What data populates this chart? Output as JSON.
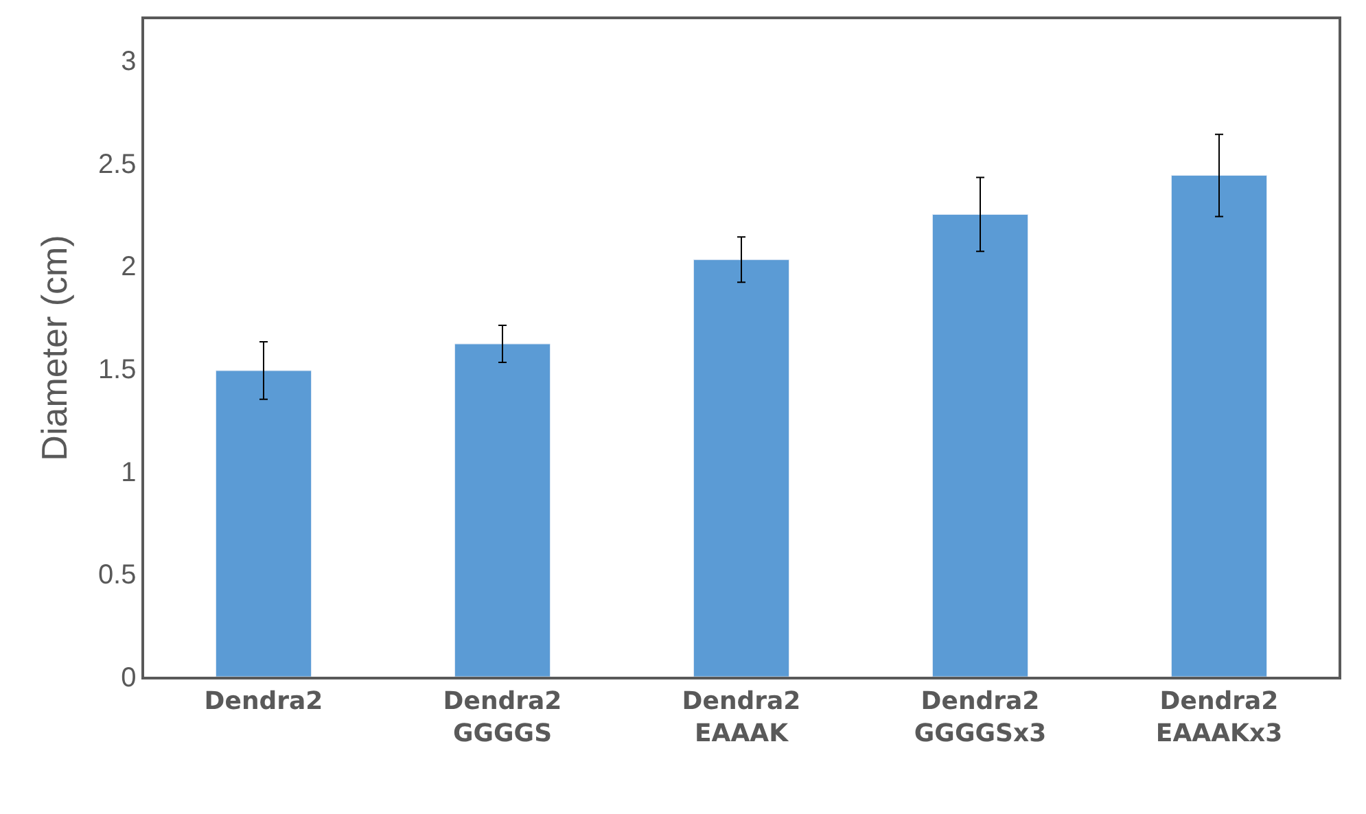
{
  "chart_data": {
    "type": "bar",
    "ylabel": "Diameter (cm)",
    "categories": [
      "Dendra2",
      "Dendra2\nGGGGS",
      "Dendra2\nEAAAK",
      "Dendra2\nGGGGSx3",
      "Dendra2\nEAAAKx3"
    ],
    "values": [
      1.49,
      1.62,
      2.03,
      2.25,
      2.44
    ],
    "errors": [
      0.14,
      0.09,
      0.11,
      0.18,
      0.2
    ],
    "color": "#5b9bd5",
    "ylim": [
      0,
      3.2
    ],
    "yticks": [
      0,
      0.5,
      1,
      1.5,
      2,
      2.5,
      3
    ]
  }
}
